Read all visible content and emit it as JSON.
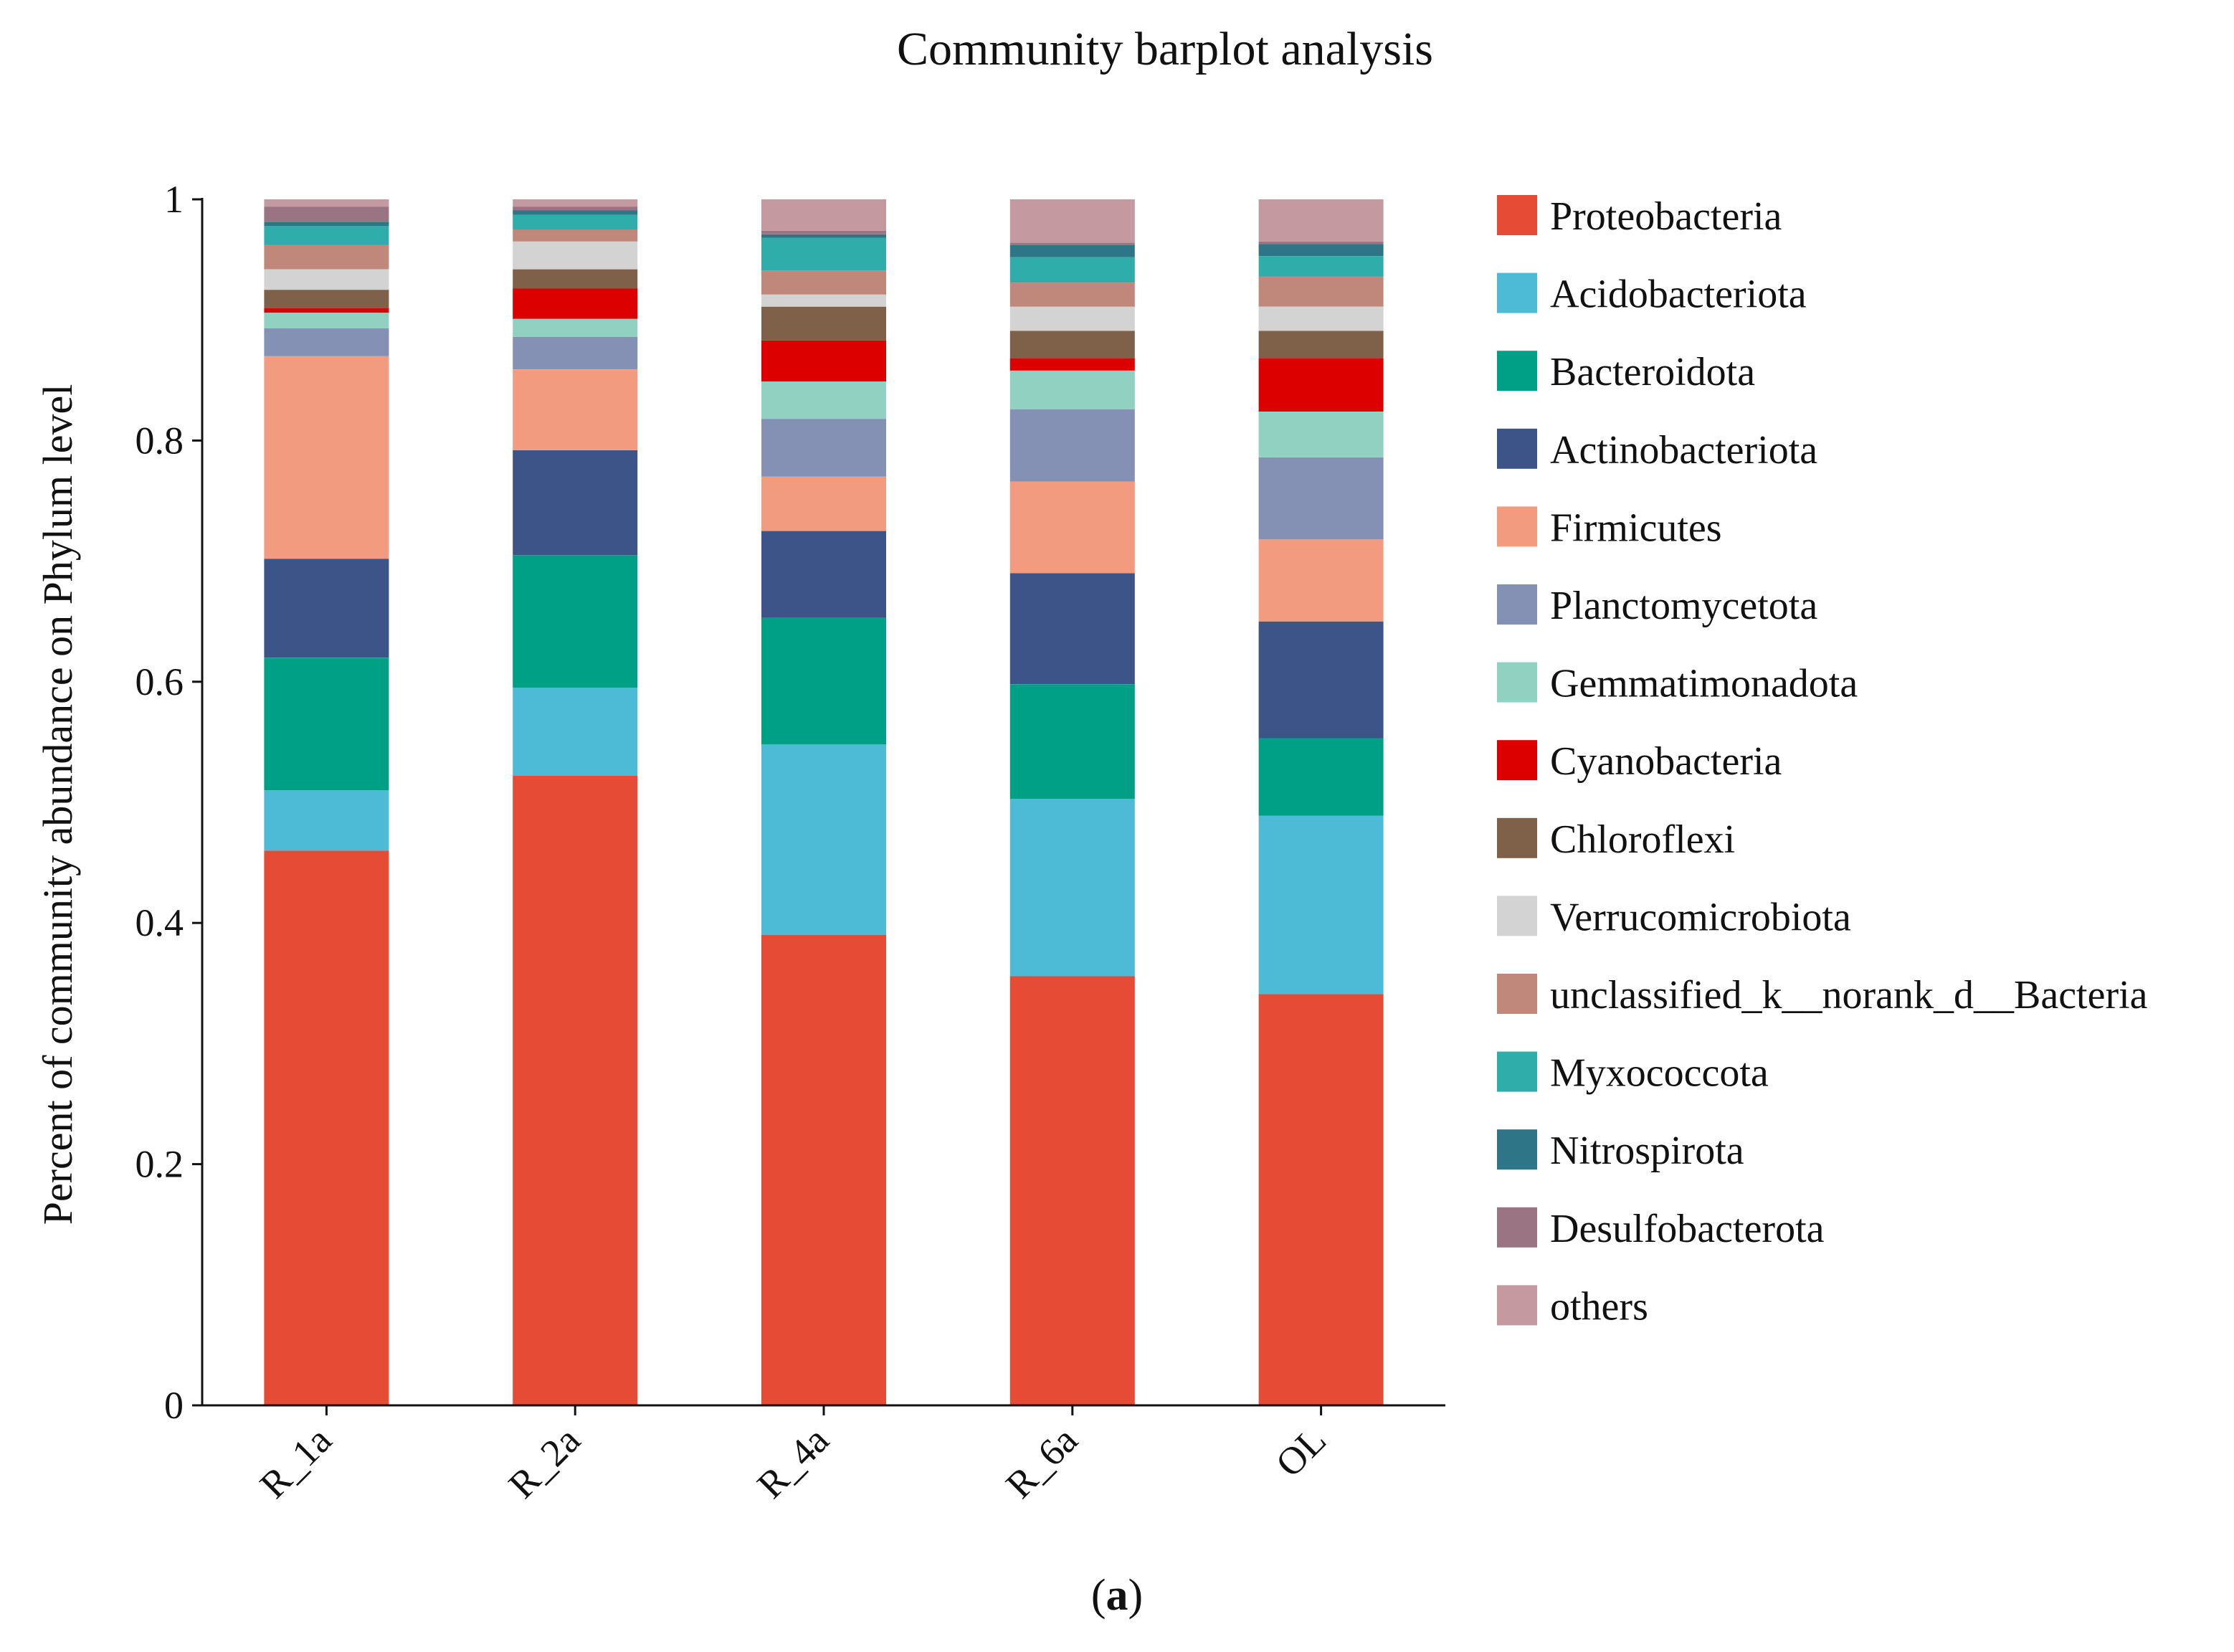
{
  "figure": {
    "caption_label": "a"
  },
  "chart_data": {
    "type": "bar",
    "stacked": true,
    "title": "Community barplot analysis",
    "xlabel": "",
    "ylabel": "Percent of community abundance on Phylum level",
    "ylim": [
      0,
      1
    ],
    "yticks": [
      0,
      0.2,
      0.4,
      0.6,
      0.8,
      1
    ],
    "ytick_labels": [
      "0",
      "0.2",
      "0.4",
      "0.6",
      "0.8",
      "1"
    ],
    "legend_position": "right",
    "categories": [
      "R_1a",
      "R_2a",
      "R_4a",
      "R_6a",
      "OL"
    ],
    "series": [
      {
        "name": "Proteobacteria",
        "color": "#E64B35",
        "values": [
          0.46,
          0.522,
          0.39,
          0.356,
          0.341
        ]
      },
      {
        "name": "Acidobacteriota",
        "color": "#4DBBD5",
        "values": [
          0.05,
          0.073,
          0.158,
          0.147,
          0.148
        ]
      },
      {
        "name": "Bacteroidota",
        "color": "#00A087",
        "values": [
          0.11,
          0.11,
          0.105,
          0.095,
          0.064
        ]
      },
      {
        "name": "Actinobacteriota",
        "color": "#3C5488",
        "values": [
          0.082,
          0.087,
          0.072,
          0.092,
          0.097
        ]
      },
      {
        "name": "Firmicutes",
        "color": "#F39B7F",
        "values": [
          0.168,
          0.067,
          0.045,
          0.076,
          0.068
        ]
      },
      {
        "name": "Planctomycetota",
        "color": "#8491B4",
        "values": [
          0.023,
          0.027,
          0.048,
          0.06,
          0.068
        ]
      },
      {
        "name": "Gemmatimonadota",
        "color": "#91D1C2",
        "values": [
          0.013,
          0.015,
          0.031,
          0.032,
          0.038
        ]
      },
      {
        "name": "Cyanobacteria",
        "color": "#DC0000",
        "values": [
          0.004,
          0.025,
          0.034,
          0.01,
          0.044
        ]
      },
      {
        "name": "Chloroflexi",
        "color": "#7E6148",
        "values": [
          0.015,
          0.016,
          0.028,
          0.023,
          0.023
        ]
      },
      {
        "name": "Verrucomicrobiota",
        "color": "#D3D3D3",
        "values": [
          0.017,
          0.023,
          0.01,
          0.02,
          0.02
        ]
      },
      {
        "name": "unclassified_k__norank_d__Bacteria",
        "color": "#C0887A",
        "values": [
          0.02,
          0.01,
          0.02,
          0.02,
          0.025
        ]
      },
      {
        "name": "Myxococcota",
        "color": "#2FADAA",
        "values": [
          0.016,
          0.012,
          0.027,
          0.021,
          0.017
        ]
      },
      {
        "name": "Nitrospirota",
        "color": "#2E7587",
        "values": [
          0.003,
          0.004,
          0.003,
          0.01,
          0.01
        ]
      },
      {
        "name": "Desulfobacterota",
        "color": "#9A7482",
        "values": [
          0.013,
          0.003,
          0.003,
          0.002,
          0.002
        ]
      },
      {
        "name": "others",
        "color": "#C4999F",
        "values": [
          0.006,
          0.006,
          0.026,
          0.036,
          0.035
        ]
      }
    ]
  }
}
